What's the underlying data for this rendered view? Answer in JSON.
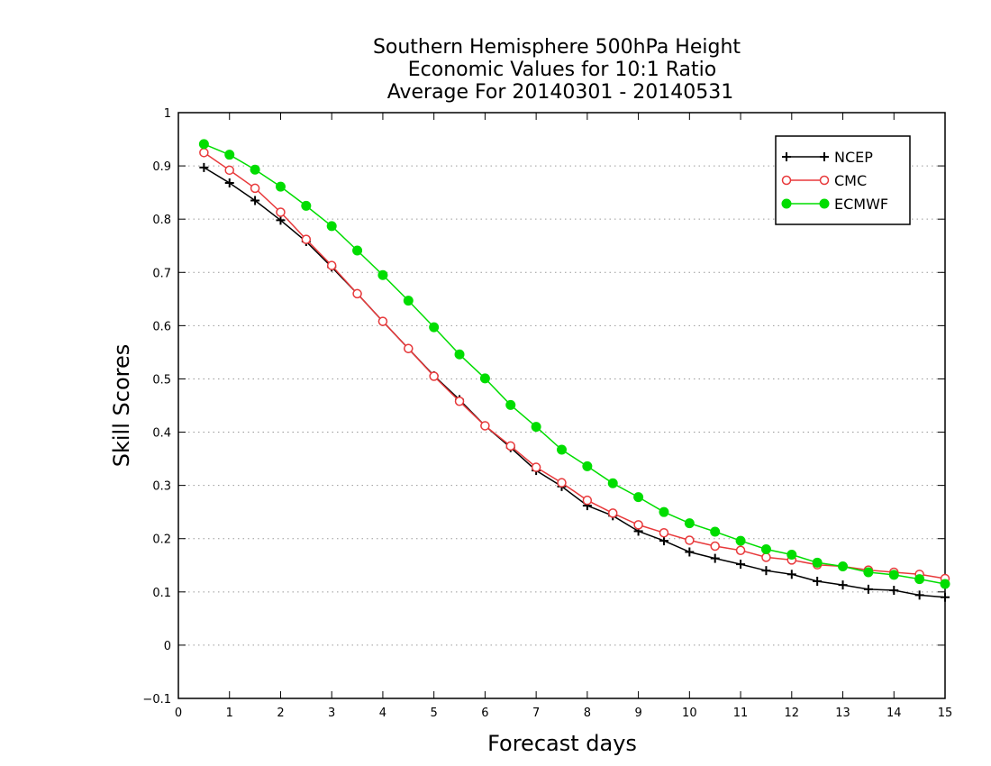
{
  "chart_data": {
    "type": "line",
    "title": [
      "Southern Hemisphere 500hPa Height",
      "Economic Values for 10:1 Ratio",
      "Average For 20140301 - 20140531"
    ],
    "xlabel": "Forecast days",
    "ylabel": "Skill Scores",
    "xlim": [
      0,
      15
    ],
    "ylim": [
      -0.1,
      1
    ],
    "xticks": [
      "0",
      "1",
      "2",
      "3",
      "4",
      "5",
      "6",
      "7",
      "8",
      "9",
      "10",
      "11",
      "12",
      "13",
      "14",
      "15"
    ],
    "yticks": [
      "-0.1",
      "0",
      "0.1",
      "0.2",
      "0.3",
      "0.4",
      "0.5",
      "0.6",
      "0.7",
      "0.8",
      "0.9",
      "1"
    ],
    "grid": "horizontal dotted",
    "legend_position": "top-right",
    "x": [
      0.5,
      1,
      1.5,
      2,
      2.5,
      3,
      3.5,
      4,
      4.5,
      5,
      5.5,
      6,
      6.5,
      7,
      7.5,
      8,
      8.5,
      9,
      9.5,
      10,
      10.5,
      11,
      11.5,
      12,
      12.5,
      13,
      13.5,
      14,
      14.5,
      15
    ],
    "series": [
      {
        "name": "NCEP",
        "color": "#000000",
        "marker": "plus",
        "values": [
          0.897,
          0.868,
          0.835,
          0.798,
          0.758,
          0.71,
          0.66,
          0.608,
          0.557,
          0.506,
          0.461,
          0.412,
          0.371,
          0.328,
          0.298,
          0.262,
          0.243,
          0.214,
          0.196,
          0.175,
          0.163,
          0.152,
          0.14,
          0.133,
          0.12,
          0.113,
          0.105,
          0.103,
          0.094,
          0.09
        ]
      },
      {
        "name": "CMC",
        "color": "#e8393b",
        "marker": "open-circle",
        "values": [
          0.925,
          0.892,
          0.858,
          0.813,
          0.762,
          0.713,
          0.66,
          0.608,
          0.557,
          0.505,
          0.458,
          0.412,
          0.374,
          0.334,
          0.305,
          0.272,
          0.248,
          0.226,
          0.211,
          0.197,
          0.186,
          0.178,
          0.165,
          0.16,
          0.151,
          0.148,
          0.141,
          0.137,
          0.133,
          0.125
        ]
      },
      {
        "name": "ECMWF",
        "color": "#00dd00",
        "marker": "filled-circle",
        "values": [
          0.941,
          0.921,
          0.893,
          0.861,
          0.825,
          0.787,
          0.741,
          0.695,
          0.647,
          0.597,
          0.546,
          0.501,
          0.451,
          0.41,
          0.367,
          0.336,
          0.304,
          0.278,
          0.25,
          0.229,
          0.213,
          0.196,
          0.18,
          0.17,
          0.155,
          0.148,
          0.137,
          0.132,
          0.124,
          0.115
        ]
      }
    ]
  }
}
